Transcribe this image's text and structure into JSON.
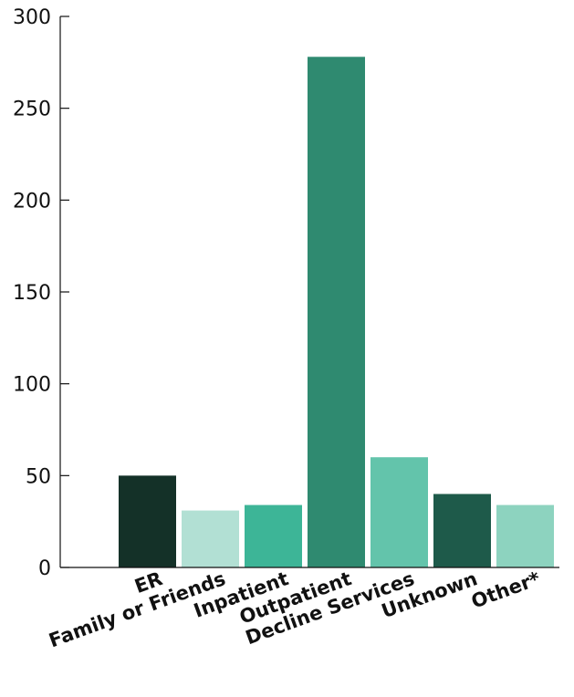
{
  "chart_data": {
    "type": "bar",
    "title": "",
    "xlabel": "",
    "ylabel": "",
    "ylim": [
      0,
      300
    ],
    "yticks": [
      0,
      50,
      100,
      150,
      200,
      250,
      300
    ],
    "categories": [
      "ER",
      "Family or Friends",
      "Inpatient",
      "Outpatient",
      "Decline Services",
      "Unknown",
      "Other*"
    ],
    "values": [
      50,
      31,
      34,
      278,
      60,
      40,
      34
    ],
    "colors": [
      "#143128",
      "#b2e0d4",
      "#3db597",
      "#2f8a70",
      "#63c4ab",
      "#1e5a4a",
      "#8dd3bf"
    ],
    "grid": false,
    "legend": "none"
  }
}
